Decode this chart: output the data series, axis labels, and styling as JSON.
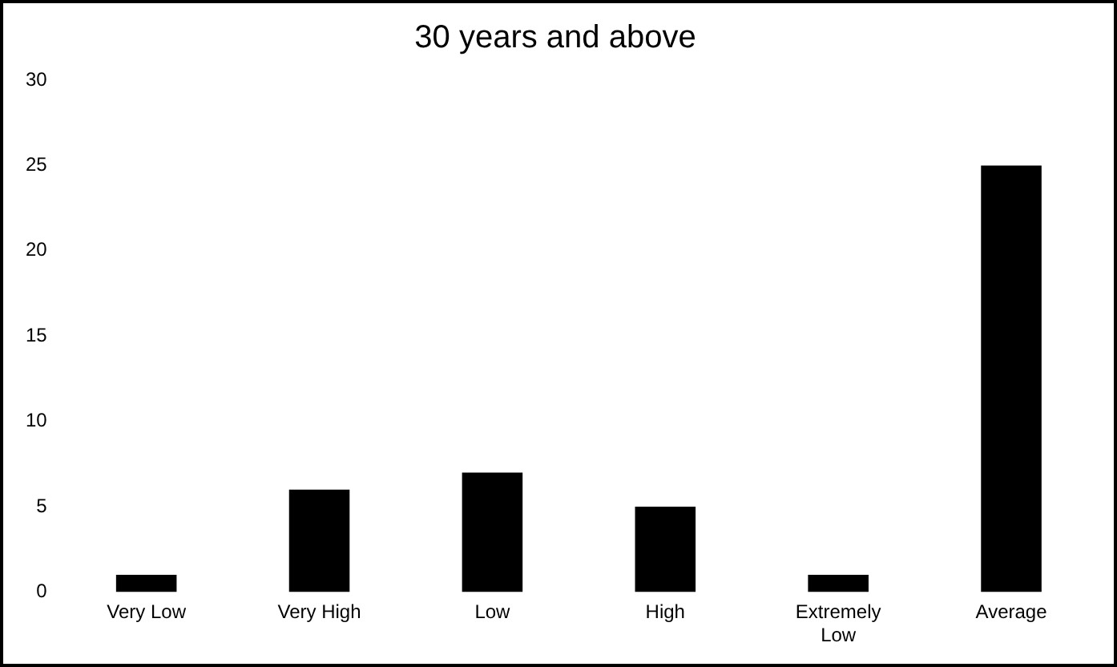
{
  "chart_data": {
    "type": "bar",
    "title": "30 years and above",
    "categories": [
      "Very Low",
      "Very High",
      "Low",
      "High",
      "Extremely Low",
      "Average"
    ],
    "values": [
      1,
      6,
      7,
      5,
      1,
      25
    ],
    "color": "#000000",
    "ylim": [
      0,
      30
    ],
    "yticks": [
      0,
      5,
      10,
      15,
      20,
      25,
      30
    ],
    "grid": false,
    "legend": false
  }
}
